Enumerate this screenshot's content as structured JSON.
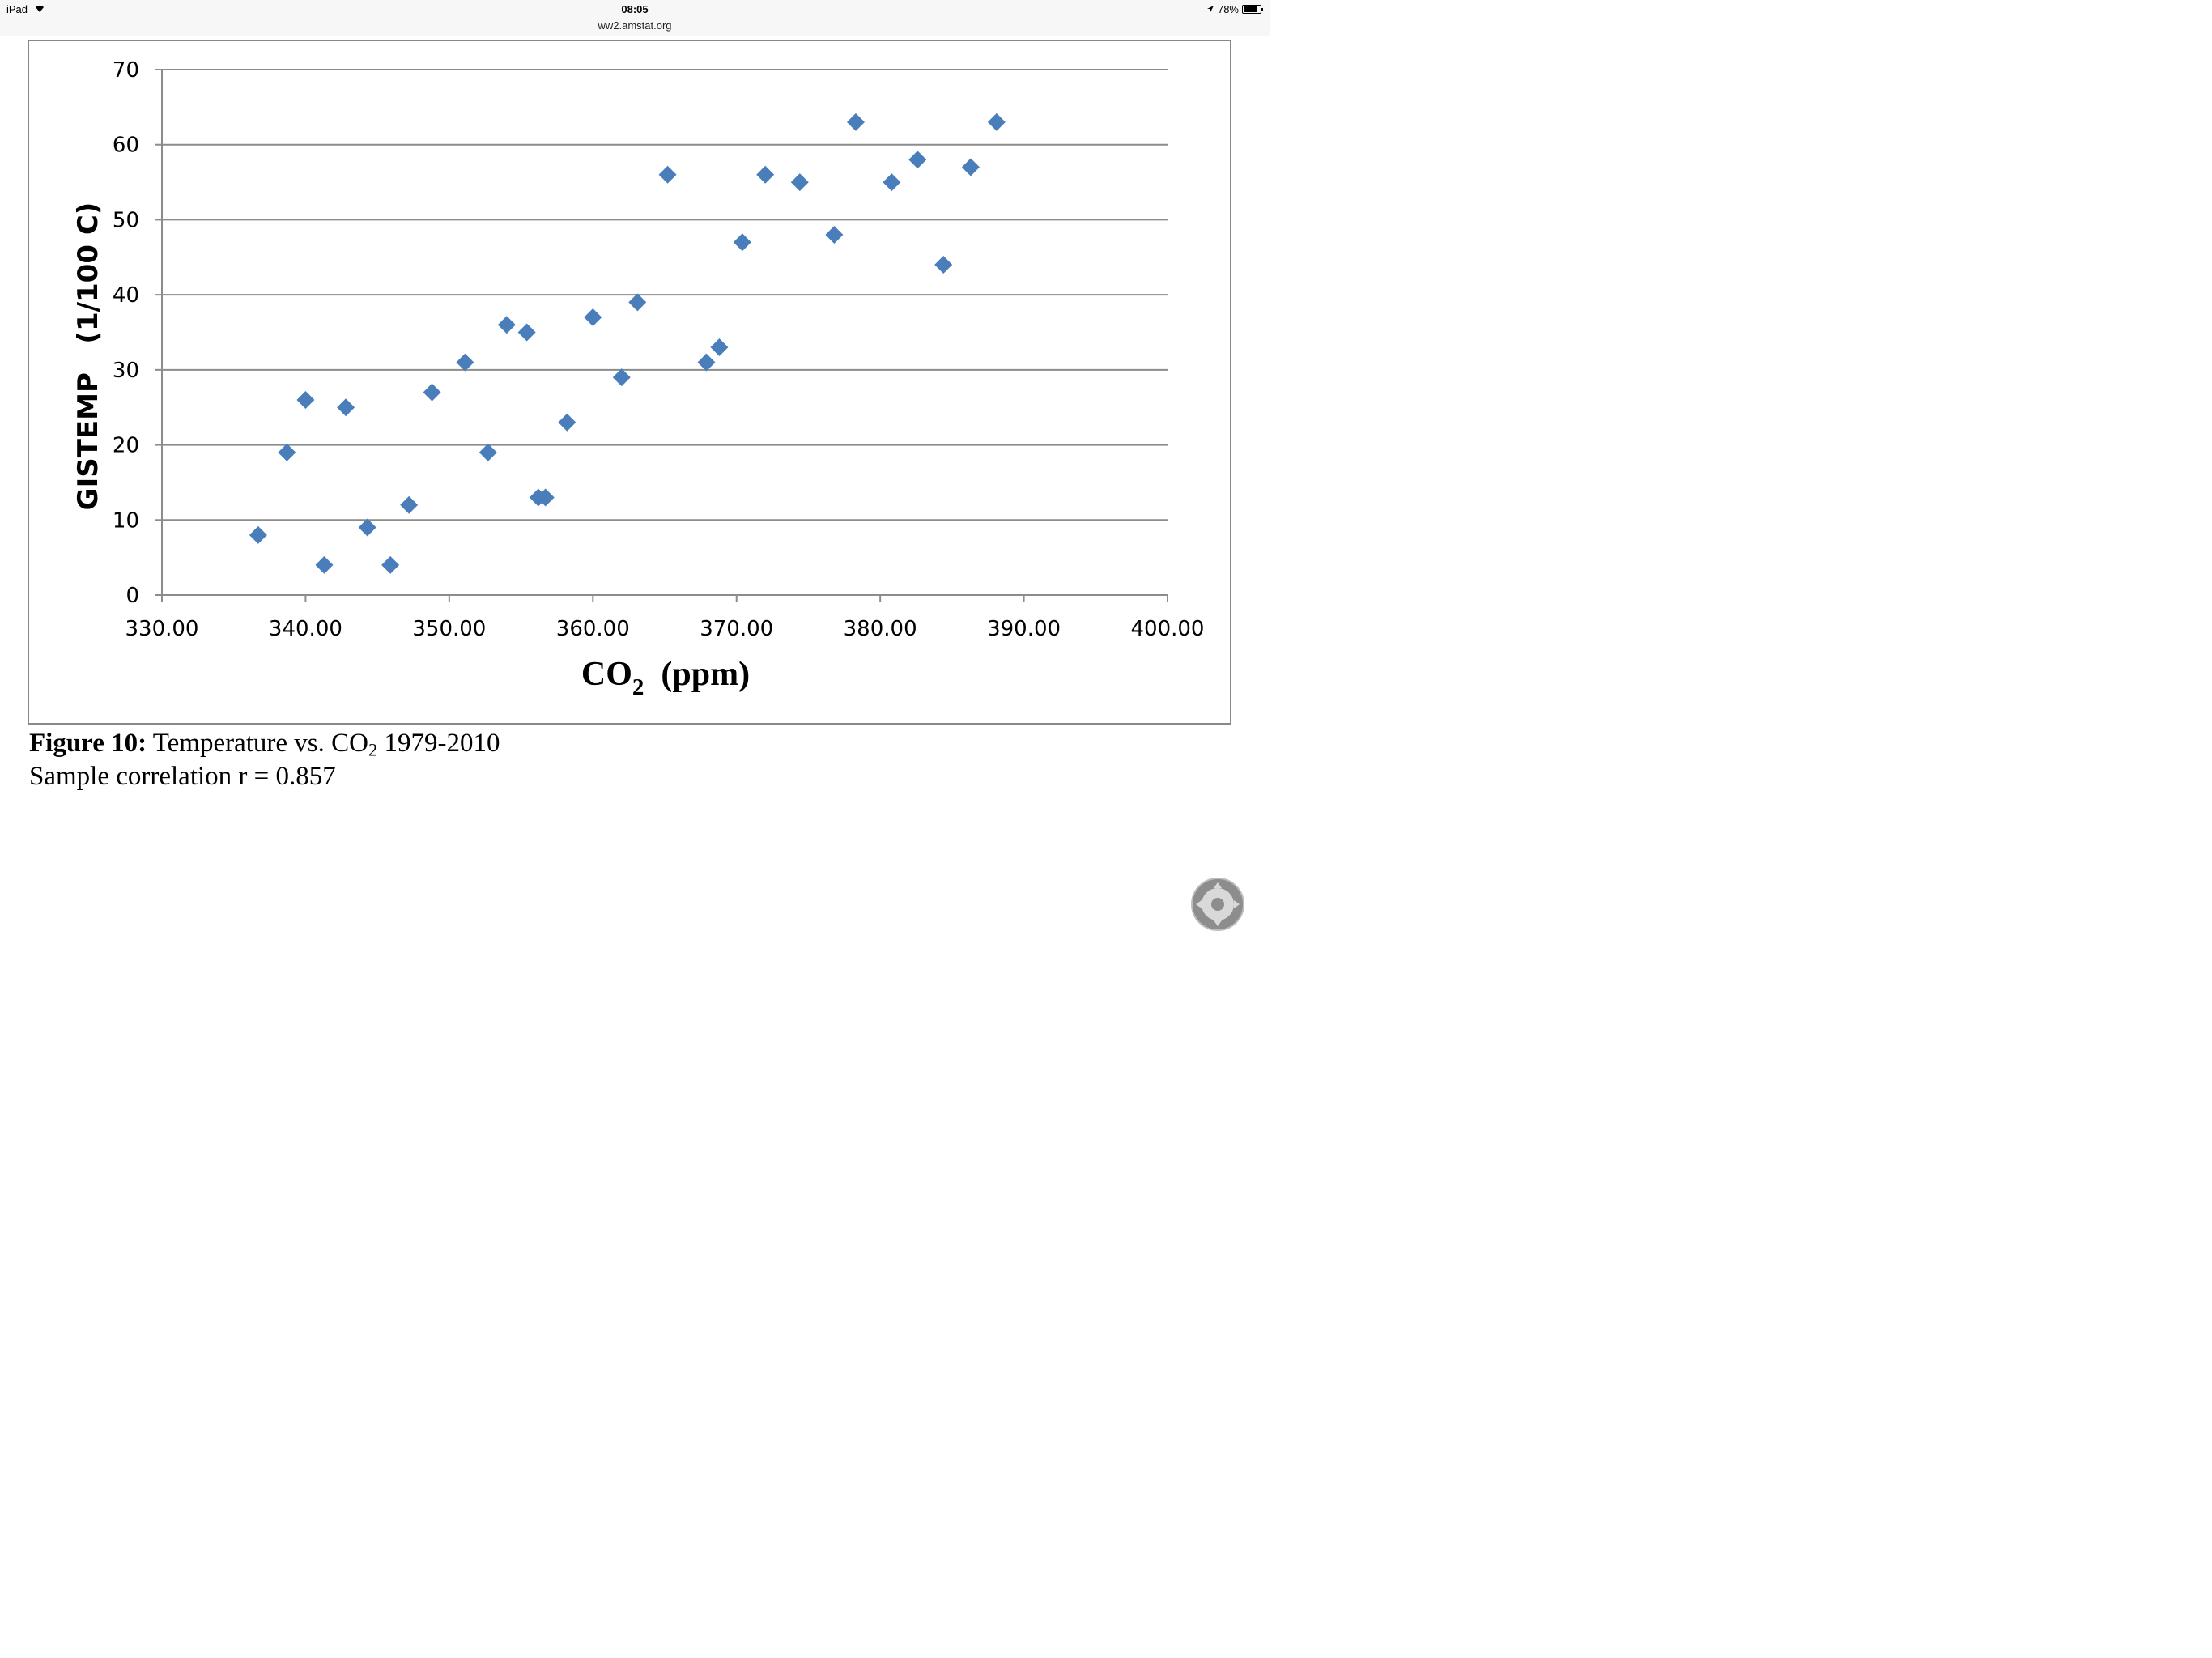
{
  "status_bar": {
    "device": "iPad",
    "time": "08:05",
    "url": "ww2.amstat.org",
    "battery": "78%",
    "battery_level": 0.78,
    "icons": [
      "wifi-icon",
      "location-arrow-icon",
      "battery-icon"
    ]
  },
  "caption": {
    "figure_label": "Figure 10:",
    "title_prefix": " Temperature vs. CO",
    "title_subscript": "2",
    "title_suffix": " 1979-2010",
    "correlation": "Sample correlation r = 0.857"
  },
  "chart_data": {
    "type": "scatter",
    "title": "",
    "xlabel_main": "CO",
    "xlabel_subscript": "2",
    "xlabel_unit": "(ppm)",
    "ylabel": "GISTEMP   (1/100 C)",
    "xlim": [
      330,
      400
    ],
    "ylim": [
      0,
      70
    ],
    "x_ticks": [
      "330.00",
      "340.00",
      "350.00",
      "360.00",
      "370.00",
      "380.00",
      "390.00",
      "400.00"
    ],
    "y_ticks": [
      "0",
      "10",
      "20",
      "30",
      "40",
      "50",
      "60",
      "70"
    ],
    "grid": "horizontal",
    "marker": "diamond",
    "marker_color": "#4a7ebb",
    "grid_color": "#8c8c8c",
    "points": [
      {
        "x": 336.7,
        "y": 8
      },
      {
        "x": 338.7,
        "y": 19
      },
      {
        "x": 340.0,
        "y": 26
      },
      {
        "x": 341.3,
        "y": 4
      },
      {
        "x": 342.8,
        "y": 25
      },
      {
        "x": 344.3,
        "y": 9
      },
      {
        "x": 345.9,
        "y": 4
      },
      {
        "x": 347.2,
        "y": 12
      },
      {
        "x": 348.8,
        "y": 27
      },
      {
        "x": 351.1,
        "y": 31
      },
      {
        "x": 352.7,
        "y": 19
      },
      {
        "x": 354.0,
        "y": 36
      },
      {
        "x": 355.4,
        "y": 35
      },
      {
        "x": 356.2,
        "y": 13
      },
      {
        "x": 356.7,
        "y": 13
      },
      {
        "x": 358.2,
        "y": 23
      },
      {
        "x": 360.0,
        "y": 37
      },
      {
        "x": 362.0,
        "y": 29
      },
      {
        "x": 363.1,
        "y": 39
      },
      {
        "x": 365.2,
        "y": 56
      },
      {
        "x": 367.9,
        "y": 31
      },
      {
        "x": 368.8,
        "y": 33
      },
      {
        "x": 370.4,
        "y": 47
      },
      {
        "x": 372.0,
        "y": 56
      },
      {
        "x": 374.4,
        "y": 55
      },
      {
        "x": 376.8,
        "y": 48
      },
      {
        "x": 378.3,
        "y": 63
      },
      {
        "x": 380.8,
        "y": 55
      },
      {
        "x": 382.6,
        "y": 58
      },
      {
        "x": 384.4,
        "y": 44
      },
      {
        "x": 386.3,
        "y": 57
      },
      {
        "x": 388.1,
        "y": 63
      }
    ]
  }
}
